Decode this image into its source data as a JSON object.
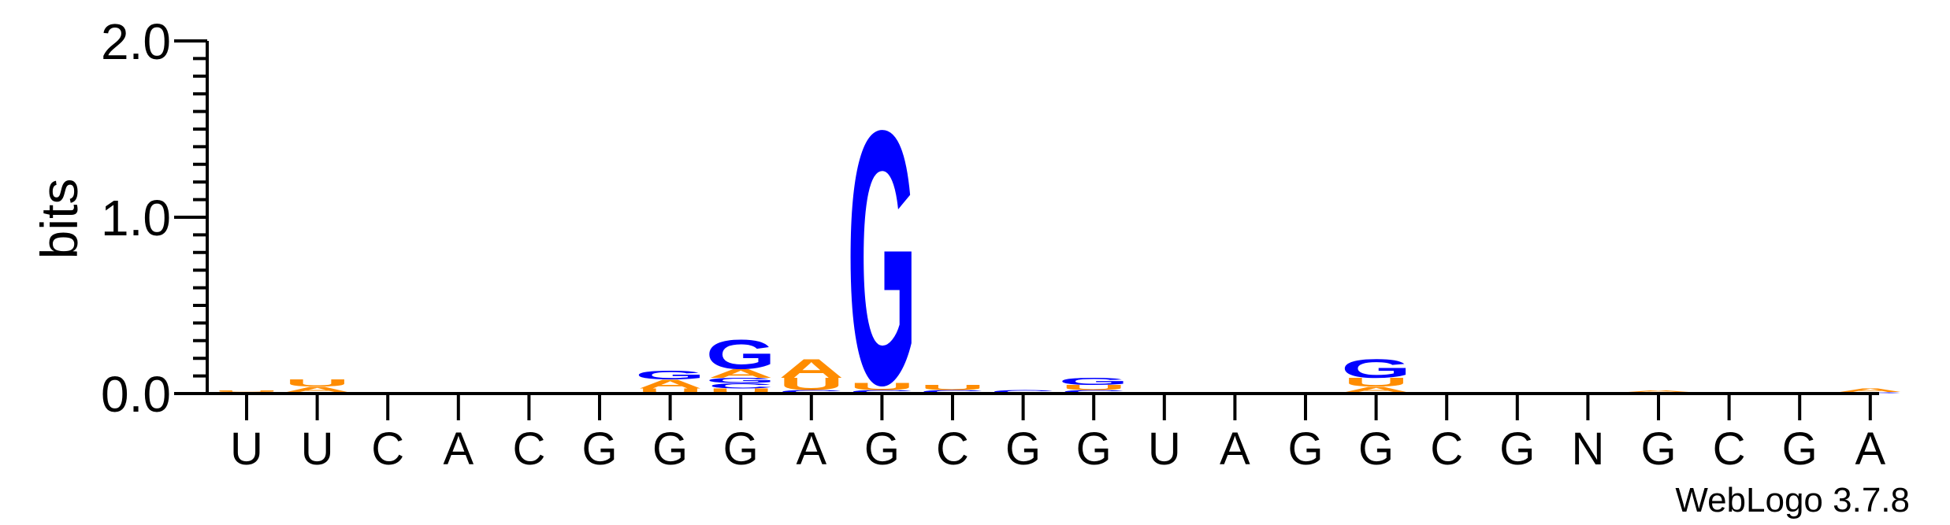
{
  "chart_data": {
    "type": "sequence-logo",
    "ylabel": "bits",
    "ylim": [
      0,
      2.0
    ],
    "yticks": [
      {
        "value": 0.0,
        "label": "0.0"
      },
      {
        "value": 1.0,
        "label": "1.0"
      },
      {
        "value": 2.0,
        "label": "2.0"
      }
    ],
    "categories": [
      "U",
      "U",
      "C",
      "A",
      "C",
      "G",
      "G",
      "G",
      "A",
      "G",
      "C",
      "G",
      "G",
      "U",
      "A",
      "G",
      "G",
      "C",
      "G",
      "N",
      "G",
      "C",
      "G",
      "A"
    ],
    "colors": {
      "G": "#0000ff",
      "A": "#ff8c00",
      "U": "#ff8c00",
      "C": "#0000ff"
    },
    "columns": [
      {
        "position": 1,
        "letters": [
          {
            "base": "A",
            "bits": 0.01
          },
          {
            "base": "U",
            "bits": 0.01
          }
        ]
      },
      {
        "position": 2,
        "letters": [
          {
            "base": "G",
            "bits": 0.01
          },
          {
            "base": "A",
            "bits": 0.03
          },
          {
            "base": "U",
            "bits": 0.04
          }
        ]
      },
      {
        "position": 3,
        "letters": []
      },
      {
        "position": 4,
        "letters": []
      },
      {
        "position": 5,
        "letters": []
      },
      {
        "position": 6,
        "letters": [
          {
            "base": "G",
            "bits": 0.01
          }
        ]
      },
      {
        "position": 7,
        "letters": [
          {
            "base": "U",
            "bits": 0.03
          },
          {
            "base": "A",
            "bits": 0.05
          },
          {
            "base": "G",
            "bits": 0.05
          }
        ]
      },
      {
        "position": 8,
        "letters": [
          {
            "base": "U",
            "bits": 0.03
          },
          {
            "base": "C",
            "bits": 0.03
          },
          {
            "base": "G",
            "bits": 0.03
          },
          {
            "base": "A",
            "bits": 0.05
          },
          {
            "base": "G",
            "bits": 0.17
          }
        ]
      },
      {
        "position": 9,
        "letters": [
          {
            "base": "C",
            "bits": 0.02
          },
          {
            "base": "U",
            "bits": 0.07
          },
          {
            "base": "A",
            "bits": 0.11
          }
        ]
      },
      {
        "position": 10,
        "letters": [
          {
            "base": "C",
            "bits": 0.02
          },
          {
            "base": "U",
            "bits": 0.04
          },
          {
            "base": "G",
            "bits": 1.48
          }
        ]
      },
      {
        "position": 11,
        "letters": [
          {
            "base": "C",
            "bits": 0.02
          },
          {
            "base": "U",
            "bits": 0.03
          }
        ]
      },
      {
        "position": 12,
        "letters": [
          {
            "base": "C",
            "bits": 0.02
          }
        ]
      },
      {
        "position": 13,
        "letters": [
          {
            "base": "C",
            "bits": 0.02
          },
          {
            "base": "U",
            "bits": 0.03
          },
          {
            "base": "G",
            "bits": 0.04
          }
        ]
      },
      {
        "position": 14,
        "letters": []
      },
      {
        "position": 15,
        "letters": [
          {
            "base": "A",
            "bits": 0.01
          }
        ]
      },
      {
        "position": 16,
        "letters": []
      },
      {
        "position": 17,
        "letters": [
          {
            "base": "C",
            "bits": 0.01
          },
          {
            "base": "A",
            "bits": 0.03
          },
          {
            "base": "U",
            "bits": 0.05
          },
          {
            "base": "G",
            "bits": 0.11
          }
        ]
      },
      {
        "position": 18,
        "letters": []
      },
      {
        "position": 19,
        "letters": []
      },
      {
        "position": 20,
        "letters": [
          {
            "base": "U",
            "bits": 0.01
          }
        ]
      },
      {
        "position": 21,
        "letters": [
          {
            "base": "C",
            "bits": 0.01
          },
          {
            "base": "A",
            "bits": 0.01
          }
        ]
      },
      {
        "position": 22,
        "letters": []
      },
      {
        "position": 23,
        "letters": []
      },
      {
        "position": 24,
        "letters": [
          {
            "base": "C",
            "bits": 0.01
          },
          {
            "base": "A",
            "bits": 0.02
          }
        ]
      }
    ],
    "credit": "WebLogo 3.7.8"
  }
}
